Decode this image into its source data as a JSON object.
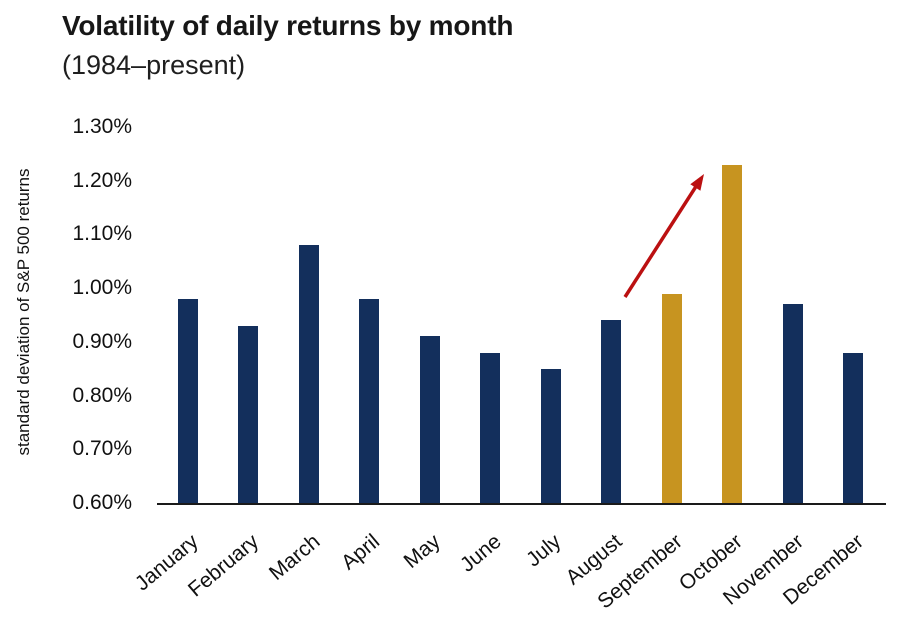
{
  "header": {
    "title": "Volatility of daily returns by month",
    "subtitle": "(1984–present)"
  },
  "chart_data": {
    "type": "bar",
    "title": "Volatility of daily returns by month",
    "subtitle": "(1984–present)",
    "xlabel": "",
    "ylabel": "standard deviation of S&P 500 returns",
    "categories": [
      "January",
      "February",
      "March",
      "April",
      "May",
      "June",
      "July",
      "August",
      "September",
      "October",
      "November",
      "December"
    ],
    "values": [
      0.98,
      0.93,
      1.08,
      0.98,
      0.91,
      0.88,
      0.85,
      0.94,
      0.99,
      1.23,
      0.97,
      0.88
    ],
    "unit": "%",
    "ylim": [
      0.6,
      1.3
    ],
    "ytick_step": 0.1,
    "ytick_labels": [
      "0.60%",
      "0.70%",
      "0.80%",
      "0.90%",
      "1.00%",
      "1.10%",
      "1.20%",
      "1.30%"
    ],
    "grid": false,
    "legend": null,
    "highlight": {
      "indices": [
        8,
        9
      ]
    },
    "colors": {
      "bar": "#132f5c",
      "highlight": "#c79420",
      "arrow": "#bb1011",
      "axis": "#1a1a1a",
      "text": "#1a1a1a"
    },
    "annotations": [
      {
        "type": "arrow",
        "x1": 625,
        "y1": 297,
        "x2": 704,
        "y2": 174
      }
    ]
  }
}
